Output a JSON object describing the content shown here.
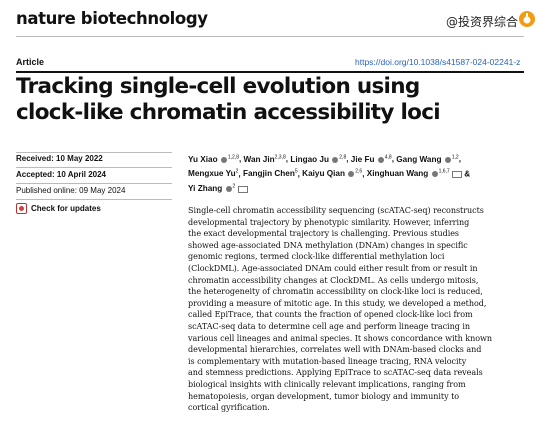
{
  "journal": "nature biotechnology",
  "watermark": "@投资界综合",
  "article_type": "Article",
  "doi": "https://doi.org/10.1038/s41587-024-02241-z",
  "title_lines": [
    "Tracking single-cell evolution using",
    "clock-like chromatin accessibility loci"
  ],
  "received": {
    "label": "Received:",
    "value": "10 May 2022"
  },
  "accepted": {
    "label": "Accepted:",
    "value": "10 April 2024"
  },
  "published": "Published online: 09 May 2024",
  "check_updates": "Check for updates",
  "authors": [
    {
      "name": "Yu Xiao",
      "aff": "1,2,8"
    },
    {
      "name": "Wan Jin",
      "aff": "2,3,8"
    },
    {
      "name": "Lingao Ju",
      "aff": "2,8"
    },
    {
      "name": "Jie Fu",
      "aff": "4,8"
    },
    {
      "name": "Gang Wang",
      "aff": "1,2"
    },
    {
      "name": "Mengxue Yu",
      "aff": "2"
    },
    {
      "name": "Fangjin Chen",
      "aff": "5"
    },
    {
      "name": "Kaiyu Qian",
      "aff": "2,6"
    },
    {
      "name": "Xinghuan Wang",
      "aff": "1,6,7"
    },
    {
      "name": "Yi Zhang",
      "aff": "2"
    }
  ],
  "abstract_lines": [
    "Single-cell chromatin accessibility sequencing (scATAC-seq) reconstructs",
    "developmental trajectory by phenotypic similarity. However, inferring",
    "the exact developmental trajectory is challenging. Previous studies",
    "showed age-associated DNA methylation (DNAm) changes in specific",
    "genomic regions, termed clock-like differential methylation loci",
    "(ClockDML). Age-associated DNAm could either result from or result in",
    "chromatin accessibility changes at ClockDML. As cells undergo mitosis,",
    "the heterogeneity of chromatin accessibility on clock-like loci is reduced,",
    "providing a measure of mitotic age. In this study, we developed a method,",
    "called EpiTrace, that counts the fraction of opened clock-like loci from",
    "scATAC-seq data to determine cell age and perform lineage tracing in",
    "various cell lineages and animal species. It shows concordance with known",
    "developmental hierarchies, correlates well with DNAm-based clocks and",
    "is complementary with mutation-based lineage tracing, RNA velocity",
    "and stemness predictions. Applying EpiTrace to scATAC-seq data reveals",
    "biological insights with clinically relevant implications, ranging from",
    "hematopoiesis, organ development, tumor biology and immunity to",
    "cortical gyrification."
  ]
}
